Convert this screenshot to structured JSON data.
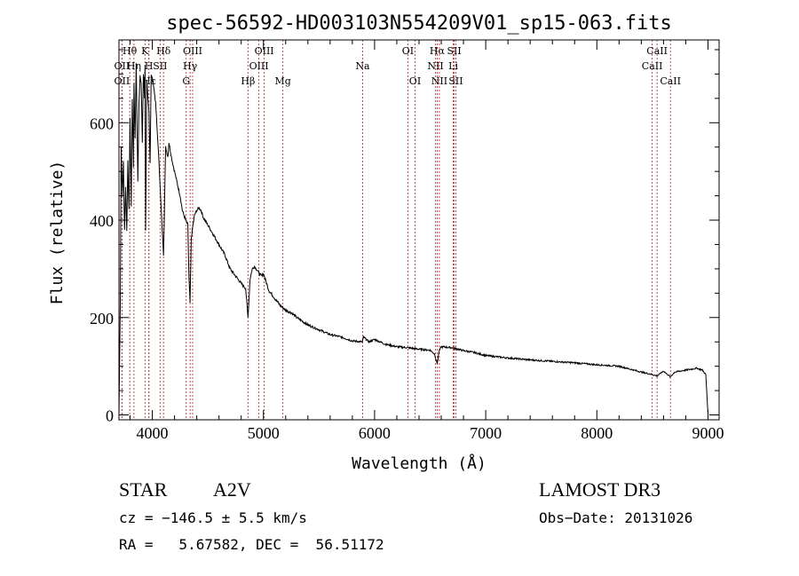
{
  "chart_data": {
    "type": "line",
    "title": "spec-56592-HD003103N554209V01_sp15-063.fits",
    "xlabel": "Wavelength (Å)",
    "ylabel": "Flux (relative)",
    "xlim": [
      3700,
      9100
    ],
    "ylim": [
      -10,
      770
    ],
    "xticks": [
      4000,
      5000,
      6000,
      7000,
      8000,
      9000
    ],
    "yticks": [
      0,
      200,
      400,
      600
    ],
    "series": [
      {
        "name": "flux",
        "x": [
          3700,
          3712,
          3720,
          3730,
          3740,
          3750,
          3760,
          3770,
          3780,
          3790,
          3800,
          3810,
          3820,
          3830,
          3835,
          3845,
          3855,
          3870,
          3880,
          3890,
          3900,
          3910,
          3920,
          3930,
          3935,
          3940,
          3950,
          3960,
          3970,
          3980,
          3990,
          4000,
          4010,
          4030,
          4060,
          4080,
          4101,
          4120,
          4140,
          4150,
          4160,
          4180,
          4200,
          4220,
          4250,
          4270,
          4300,
          4320,
          4330,
          4340,
          4350,
          4360,
          4380,
          4400,
          4420,
          4440,
          4460,
          4500,
          4550,
          4600,
          4650,
          4700,
          4750,
          4800,
          4840,
          4861,
          4880,
          4900,
          4920,
          4950,
          4980,
          5000,
          5050,
          5100,
          5150,
          5200,
          5250,
          5300,
          5400,
          5500,
          5600,
          5700,
          5800,
          5890,
          5900,
          5950,
          6000,
          6100,
          6200,
          6300,
          6400,
          6500,
          6540,
          6563,
          6580,
          6600,
          6700,
          6800,
          6900,
          7000,
          7200,
          7400,
          7600,
          7800,
          8000,
          8200,
          8400,
          8498,
          8542,
          8600,
          8662,
          8700,
          8800,
          8900,
          8950,
          8980,
          9000
        ],
        "values": [
          0,
          230,
          550,
          450,
          520,
          380,
          470,
          380,
          520,
          420,
          610,
          430,
          650,
          510,
          680,
          570,
          720,
          480,
          640,
          700,
          680,
          560,
          700,
          650,
          720,
          380,
          690,
          650,
          620,
          520,
          700,
          690,
          680,
          640,
          520,
          420,
          330,
          550,
          530,
          560,
          545,
          520,
          500,
          480,
          450,
          420,
          400,
          390,
          280,
          230,
          360,
          380,
          410,
          420,
          425,
          420,
          405,
          390,
          370,
          350,
          330,
          300,
          285,
          270,
          260,
          200,
          280,
          300,
          305,
          295,
          285,
          290,
          255,
          240,
          225,
          215,
          210,
          200,
          185,
          175,
          165,
          160,
          152,
          150,
          160,
          150,
          155,
          145,
          140,
          138,
          135,
          133,
          125,
          105,
          130,
          140,
          138,
          132,
          128,
          122,
          117,
          113,
          110,
          107,
          103,
          100,
          88,
          83,
          80,
          90,
          78,
          88,
          92,
          96,
          92,
          83,
          0
        ]
      }
    ],
    "line_markers": [
      {
        "label": "Hθ",
        "x": 3797,
        "row": 1
      },
      {
        "label": "OII",
        "x": 3727,
        "row": 2
      },
      {
        "label": "OII",
        "x": 3727,
        "row": 3
      },
      {
        "label": "Hη",
        "x": 3835,
        "row": 2
      },
      {
        "label": "Hε",
        "x": 3970,
        "row": 3
      },
      {
        "label": "K",
        "x": 3934,
        "row": 1
      },
      {
        "label": "H",
        "x": 3969,
        "row": 2
      },
      {
        "label": "Hδ",
        "x": 4101,
        "row": 1
      },
      {
        "label": "SII",
        "x": 4070,
        "row": 2
      },
      {
        "label": "OIII",
        "x": 4363,
        "row": 1
      },
      {
        "label": "Hγ",
        "x": 4340,
        "row": 2
      },
      {
        "label": "G",
        "x": 4305,
        "row": 3
      },
      {
        "label": "OIII",
        "x": 5007,
        "row": 1
      },
      {
        "label": "OIII",
        "x": 4959,
        "row": 2
      },
      {
        "label": "Hβ",
        "x": 4861,
        "row": 3
      },
      {
        "label": "Mg",
        "x": 5175,
        "row": 3
      },
      {
        "label": "Na",
        "x": 5893,
        "row": 2
      },
      {
        "label": "OI",
        "x": 6300,
        "row": 1
      },
      {
        "label": "OI",
        "x": 6364,
        "row": 3
      },
      {
        "label": "Hα",
        "x": 6563,
        "row": 1
      },
      {
        "label": "SII",
        "x": 6716,
        "row": 1
      },
      {
        "label": "NII",
        "x": 6548,
        "row": 2
      },
      {
        "label": "Li",
        "x": 6708,
        "row": 2
      },
      {
        "label": "NII",
        "x": 6583,
        "row": 3
      },
      {
        "label": "SII",
        "x": 6731,
        "row": 3
      },
      {
        "label": "CaII",
        "x": 8542,
        "row": 1
      },
      {
        "label": "CaII",
        "x": 8498,
        "row": 2
      },
      {
        "label": "CaII",
        "x": 8662,
        "row": 3
      }
    ],
    "marker_color": "#b22222"
  },
  "info": {
    "class_label": "STAR",
    "subclass": "A2V",
    "survey": "LAMOST DR3",
    "cz": "cz = −146.5 ± 5.5 km/s",
    "obs_date": "Obs−Date: 20131026",
    "coords": "RA =   5.67582, DEC =  56.51172"
  }
}
